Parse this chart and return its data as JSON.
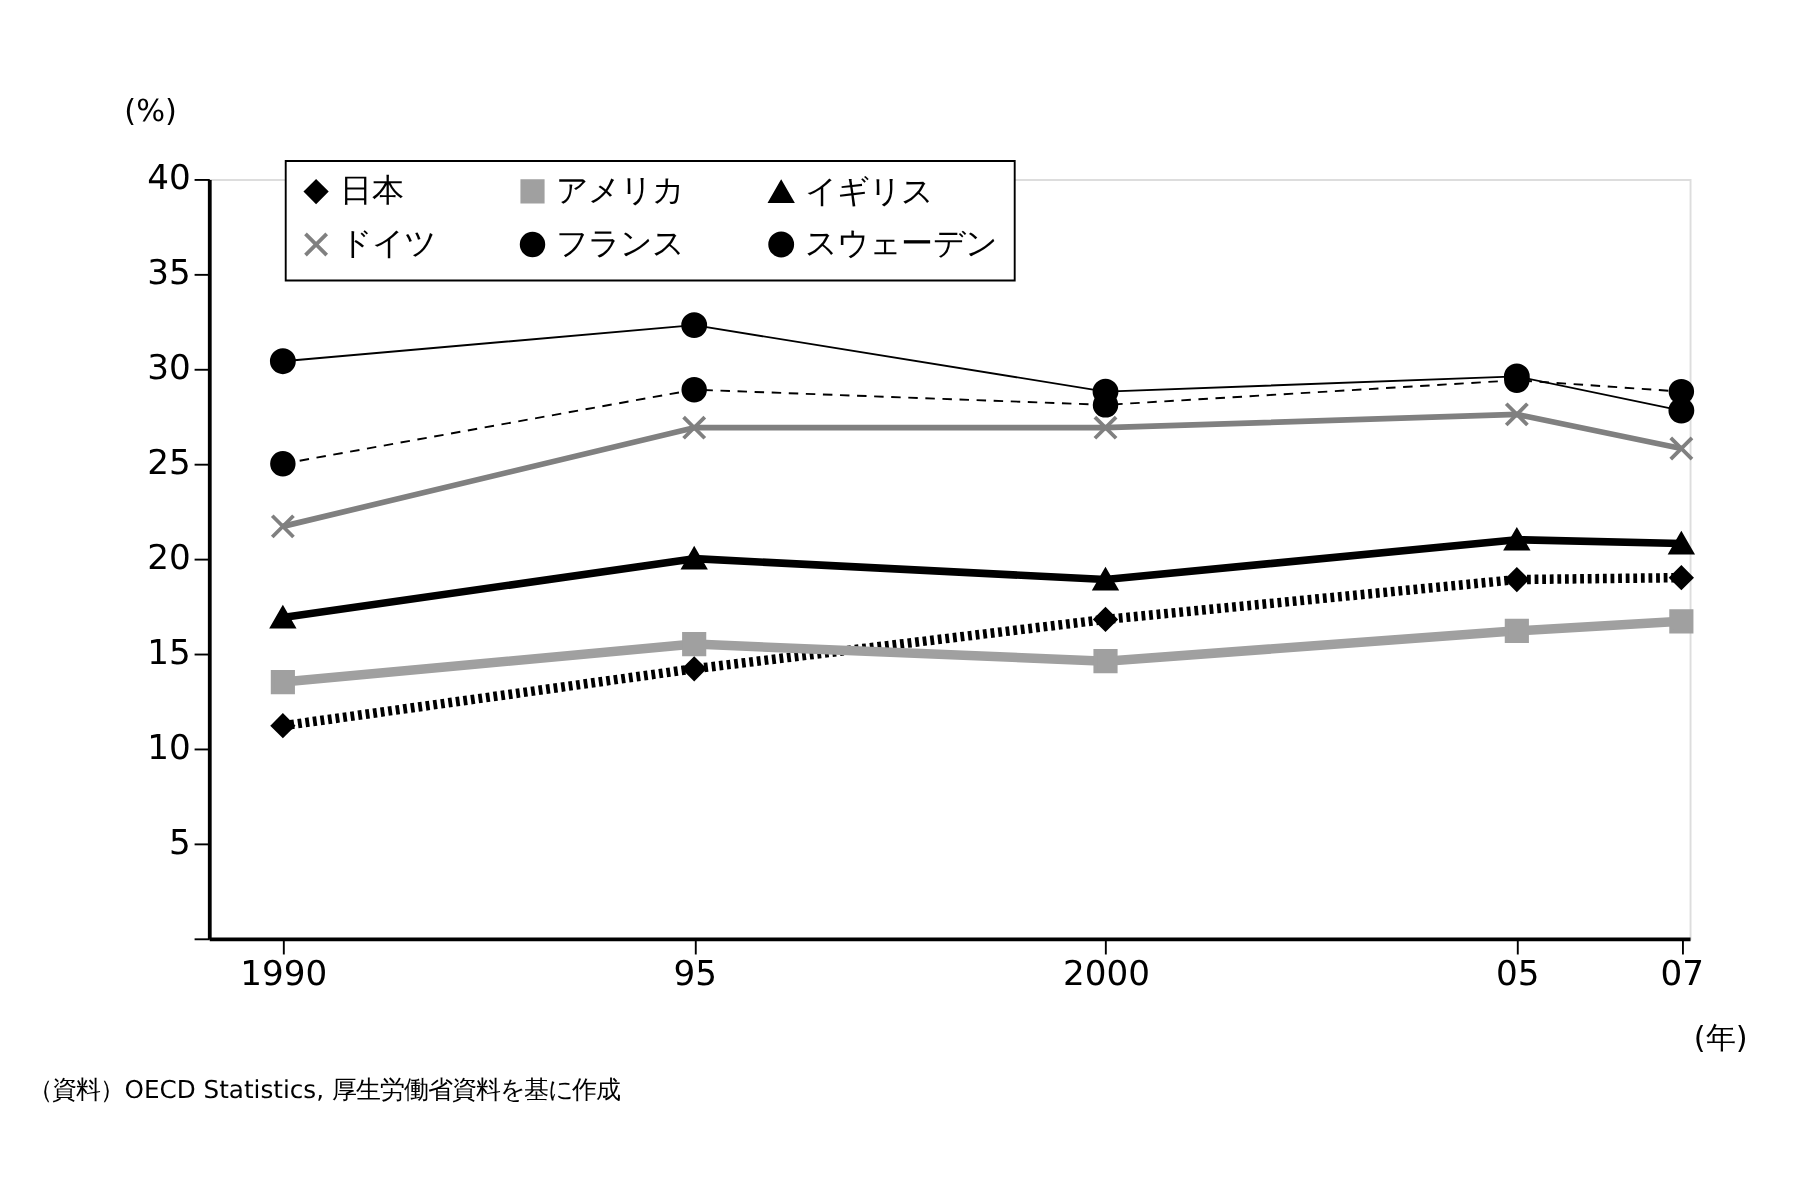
{
  "chart_data": {
    "type": "line",
    "ylabel": "(%)",
    "xlabel": "(年)",
    "x": [
      1990,
      1995,
      2000,
      2005,
      2007
    ],
    "xlim": [
      1989.1,
      2007.1
    ],
    "xticks": [
      {
        "value": 1990,
        "label": "1990"
      },
      {
        "value": 1995,
        "label": "95"
      },
      {
        "value": 2000,
        "label": "2000"
      },
      {
        "value": 2005,
        "label": "05"
      },
      {
        "value": 2007,
        "label": "07"
      }
    ],
    "ylim": [
      0,
      40
    ],
    "yticks": [
      {
        "value": 0,
        "label": null
      },
      5,
      10,
      15,
      20,
      25,
      30,
      35,
      40
    ],
    "grid": false,
    "legend": "top",
    "series": [
      {
        "name": "日本",
        "color": "#000000",
        "marker": "diamond",
        "line_style": "dotted",
        "values": [
          11.2,
          14.2,
          16.8,
          18.9,
          19.0
        ]
      },
      {
        "name": "アメリカ",
        "color": "#a0a0a0",
        "marker": "square",
        "line_style": "solid",
        "values": [
          13.5,
          15.5,
          14.6,
          16.2,
          16.7
        ]
      },
      {
        "name": "イギリス",
        "color": "#000000",
        "marker": "triangle",
        "line_style": "solid",
        "values": [
          16.9,
          20.0,
          18.9,
          21.0,
          20.8
        ]
      },
      {
        "name": "ドイツ",
        "color": "#808080",
        "marker": "cross",
        "line_style": "solid",
        "values": [
          21.7,
          26.9,
          26.9,
          27.6,
          25.8
        ]
      },
      {
        "name": "フランス",
        "color": "#000000",
        "marker": "circle",
        "line_style": "dashed",
        "values": [
          25.0,
          28.9,
          28.1,
          29.4,
          28.8
        ]
      },
      {
        "name": "スウェーデン",
        "color": "#000000",
        "marker": "circle",
        "line_style": "solid",
        "values": [
          30.4,
          32.3,
          28.8,
          29.6,
          27.8
        ]
      }
    ],
    "annotations": [
      "（資料）OECD Statistics, 厚生労働省資料を基に作成"
    ]
  }
}
